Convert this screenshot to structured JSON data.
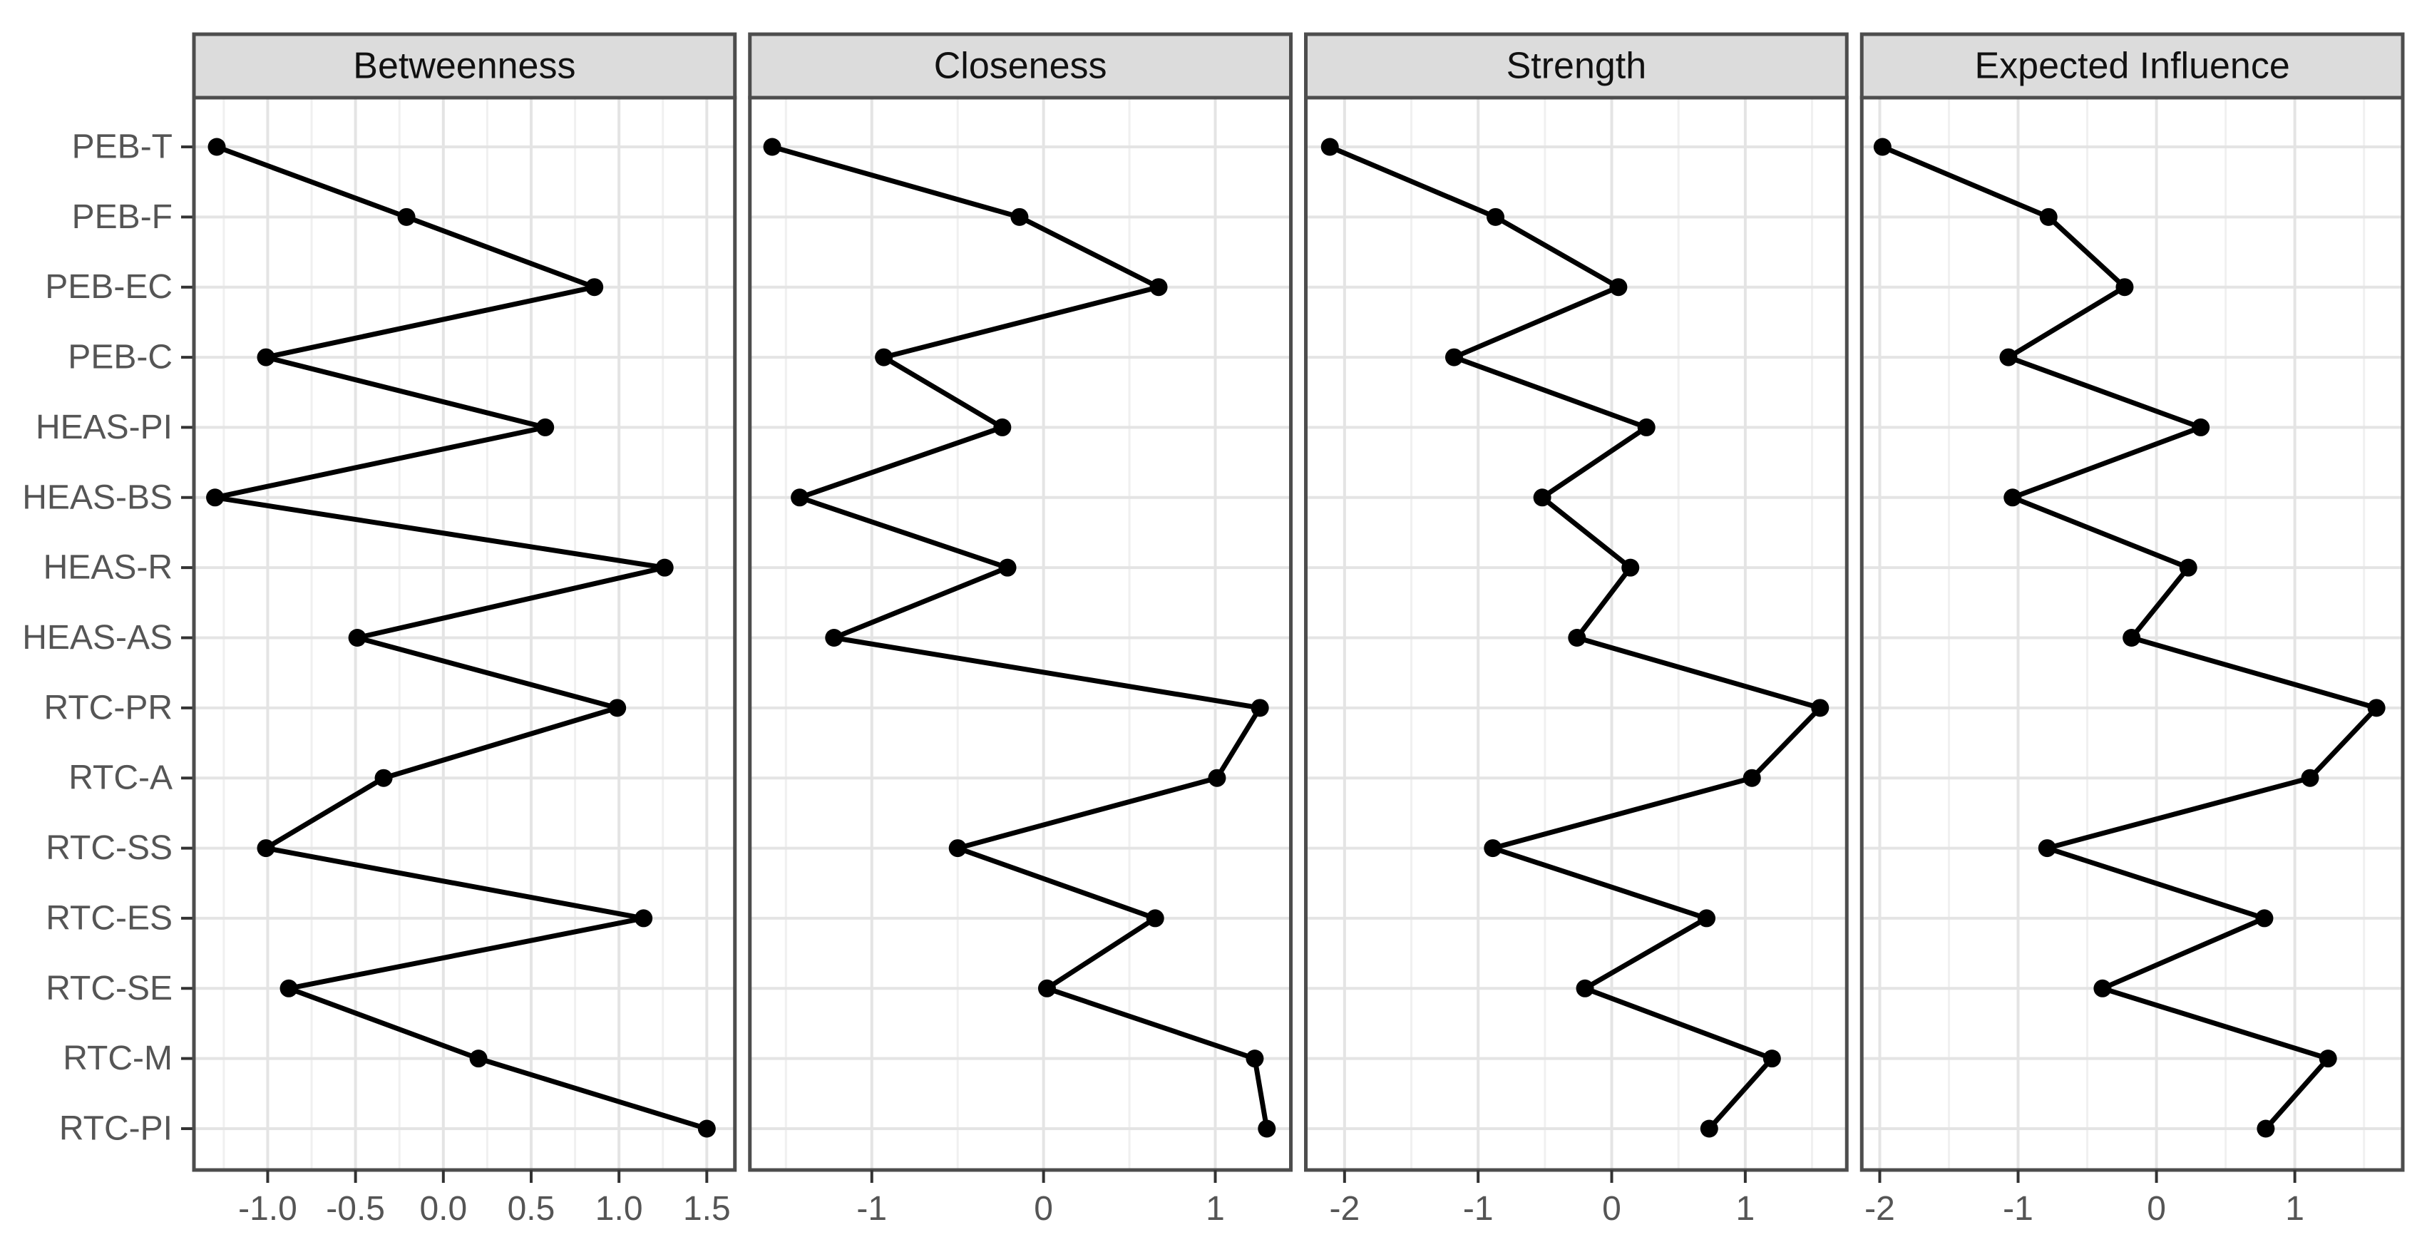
{
  "style": {
    "background": "#FFFFFF",
    "panel_fill": "#FFFFFF",
    "panel_border_color": "#4D4D4D",
    "strip_fill": "#DCDCDC",
    "strip_border_color": "#4D4D4D",
    "strip_text_color": "#111111",
    "grid_major_color": "#E4E4E4",
    "grid_minor_color": "#F0F0F0",
    "axis_text_color": "#555555",
    "tick_mark_color": "#333333",
    "line_color": "#000000",
    "point_color": "#000000"
  },
  "chart_data": {
    "type": "line",
    "subtype": "faceted-horizontal-dot-line-centrality-plot",
    "title": "",
    "legend": "none",
    "grid": true,
    "ylabel": "",
    "xlabel": "",
    "categories": [
      "PEB-T",
      "PEB-F",
      "PEB-EC",
      "PEB-C",
      "HEAS-PI",
      "HEAS-BS",
      "HEAS-R",
      "HEAS-AS",
      "RTC-PR",
      "RTC-A",
      "RTC-SS",
      "RTC-ES",
      "RTC-SE",
      "RTC-M",
      "RTC-PI"
    ],
    "series": [
      {
        "name": "Betweenness",
        "values": [
          -1.29,
          -0.21,
          0.86,
          -1.01,
          0.58,
          -1.3,
          1.26,
          -0.49,
          0.99,
          -0.34,
          -1.01,
          1.14,
          -0.88,
          0.2,
          1.5
        ]
      },
      {
        "name": "Closeness",
        "values": [
          -1.58,
          -0.14,
          0.67,
          -0.93,
          -0.24,
          -1.42,
          -0.21,
          -1.22,
          1.26,
          1.01,
          -0.5,
          0.65,
          0.02,
          1.23,
          1.3
        ]
      },
      {
        "name": "Strength",
        "values": [
          -2.11,
          -0.87,
          0.05,
          -1.18,
          0.26,
          -0.52,
          0.14,
          -0.26,
          1.56,
          1.05,
          -0.89,
          0.71,
          -0.2,
          1.2,
          0.73
        ]
      },
      {
        "name": "Expected Influence",
        "values": [
          -1.98,
          -0.78,
          -0.23,
          -1.07,
          0.32,
          -1.04,
          0.23,
          -0.18,
          1.59,
          1.11,
          -0.79,
          0.78,
          -0.39,
          1.24,
          0.79
        ]
      }
    ],
    "panels": [
      {
        "title": "Betweenness",
        "xlim": [
          -1.42,
          1.66
        ],
        "major_ticks": [
          -1.0,
          -0.5,
          0.0,
          0.5,
          1.0,
          1.5
        ],
        "tick_labels": [
          "-1.0",
          "-0.5",
          "0.0",
          "0.5",
          "1.0",
          "1.5"
        ],
        "minor_ticks": [
          -1.25,
          -0.75,
          -0.25,
          0.25,
          0.75,
          1.25
        ]
      },
      {
        "title": "Closeness",
        "xlim": [
          -1.71,
          1.44
        ],
        "major_ticks": [
          -1,
          0,
          1
        ],
        "tick_labels": [
          "-1",
          "0",
          "1"
        ],
        "minor_ticks": [
          -1.5,
          -0.5,
          0.5
        ]
      },
      {
        "title": "Strength",
        "xlim": [
          -2.29,
          1.76
        ],
        "major_ticks": [
          -2,
          -1,
          0,
          1
        ],
        "tick_labels": [
          "-2",
          "-1",
          "0",
          "1"
        ],
        "minor_ticks": [
          -1.5,
          -0.5,
          0.5,
          1.5
        ]
      },
      {
        "title": "Expected Influence",
        "xlim": [
          -2.13,
          1.78
        ],
        "major_ticks": [
          -2,
          -1,
          0,
          1
        ],
        "tick_labels": [
          "-2",
          "-1",
          "0",
          "1"
        ],
        "minor_ticks": [
          -1.5,
          -0.5,
          0.5,
          1.5
        ]
      }
    ]
  }
}
